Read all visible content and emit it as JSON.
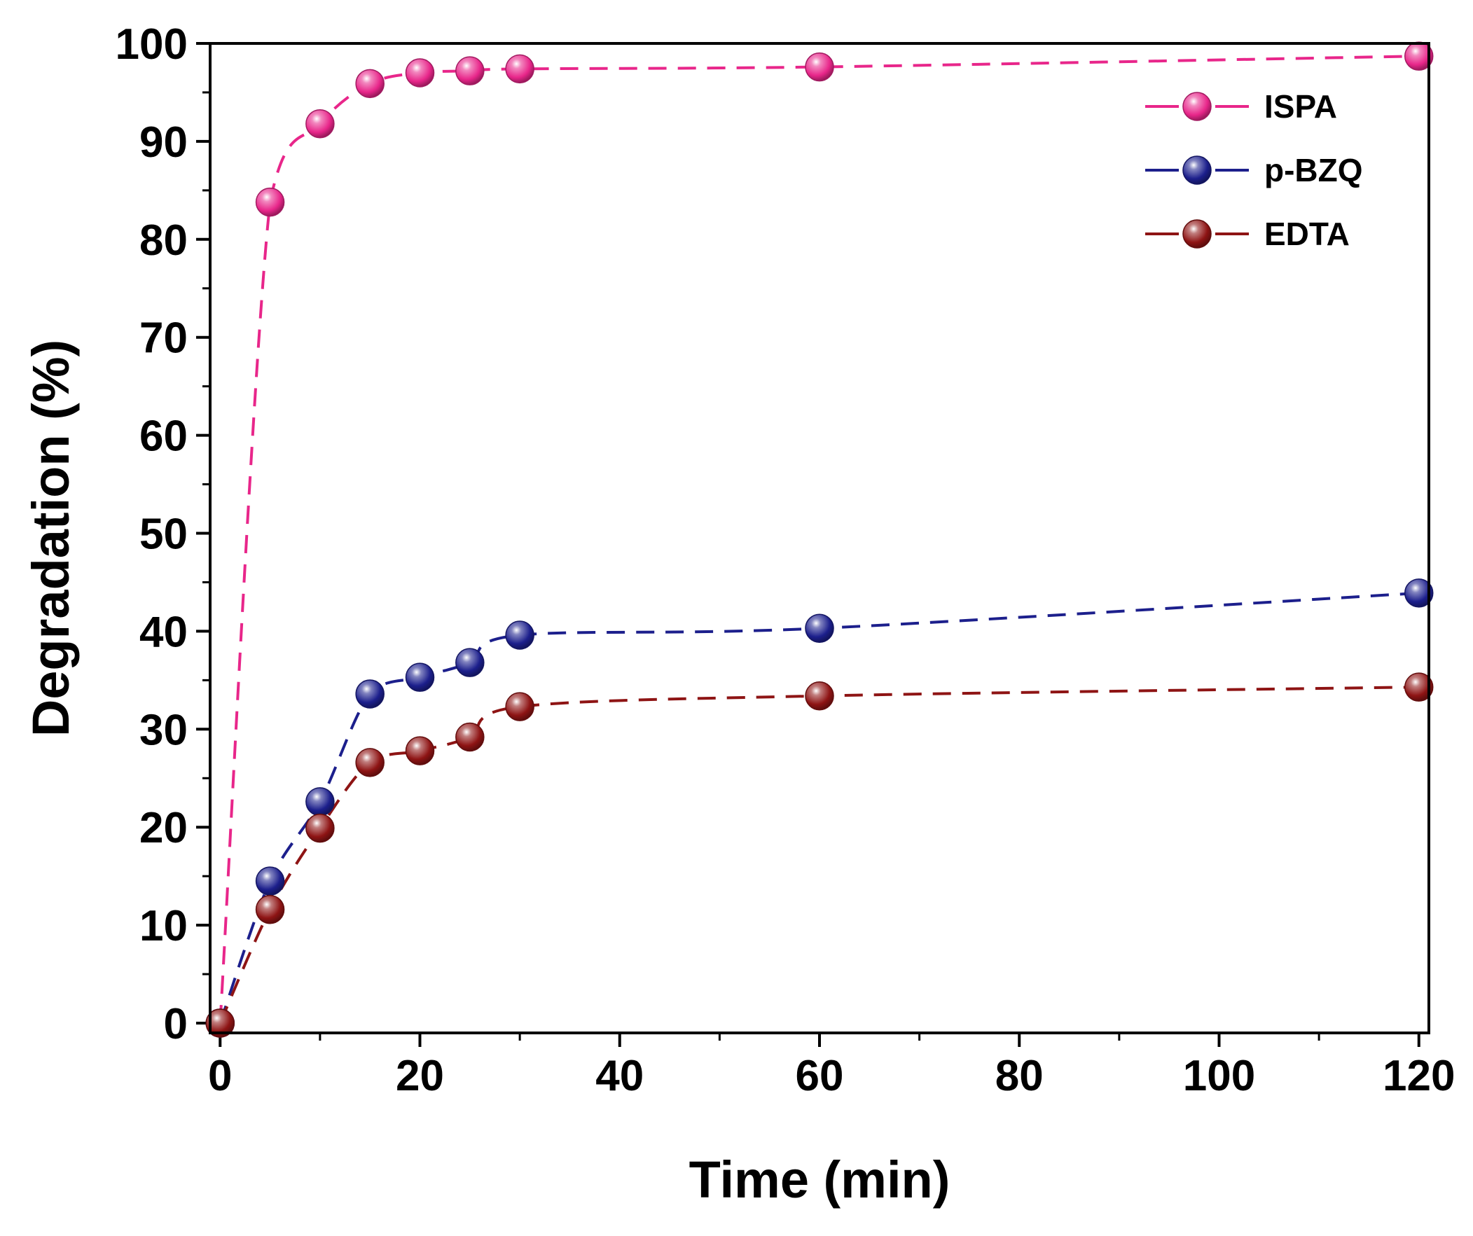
{
  "chart_data": {
    "type": "line",
    "title": "",
    "xlabel": "Time (min)",
    "ylabel": "Degradation (%)",
    "xlim": [
      -1,
      121
    ],
    "ylim": [
      -1,
      100
    ],
    "x_ticks": [
      0,
      20,
      40,
      60,
      80,
      100,
      120
    ],
    "x_minor_ticks": [
      10,
      30,
      50,
      70,
      90,
      110
    ],
    "y_ticks": [
      0,
      10,
      20,
      30,
      40,
      50,
      60,
      70,
      80,
      90,
      100
    ],
    "y_minor_ticks": [
      5,
      15,
      25,
      35,
      45,
      55,
      65,
      75,
      85,
      95
    ],
    "grid": false,
    "legend_position": "top-right",
    "line_style": "dashed",
    "x": [
      0,
      5,
      10,
      15,
      20,
      25,
      30,
      60,
      120
    ],
    "series": [
      {
        "name": "ISPA",
        "color": "#e8268a",
        "values": [
          0,
          83.8,
          91.8,
          95.9,
          97.0,
          97.2,
          97.4,
          97.6,
          98.7
        ]
      },
      {
        "name": "p-BZQ",
        "color": "#1c1f8c",
        "values": [
          0,
          14.5,
          22.6,
          33.6,
          35.3,
          36.8,
          39.6,
          40.3,
          43.9
        ]
      },
      {
        "name": "EDTA",
        "color": "#8e1414",
        "values": [
          0,
          11.6,
          19.9,
          26.6,
          27.8,
          29.2,
          32.3,
          33.4,
          34.3
        ]
      }
    ]
  }
}
